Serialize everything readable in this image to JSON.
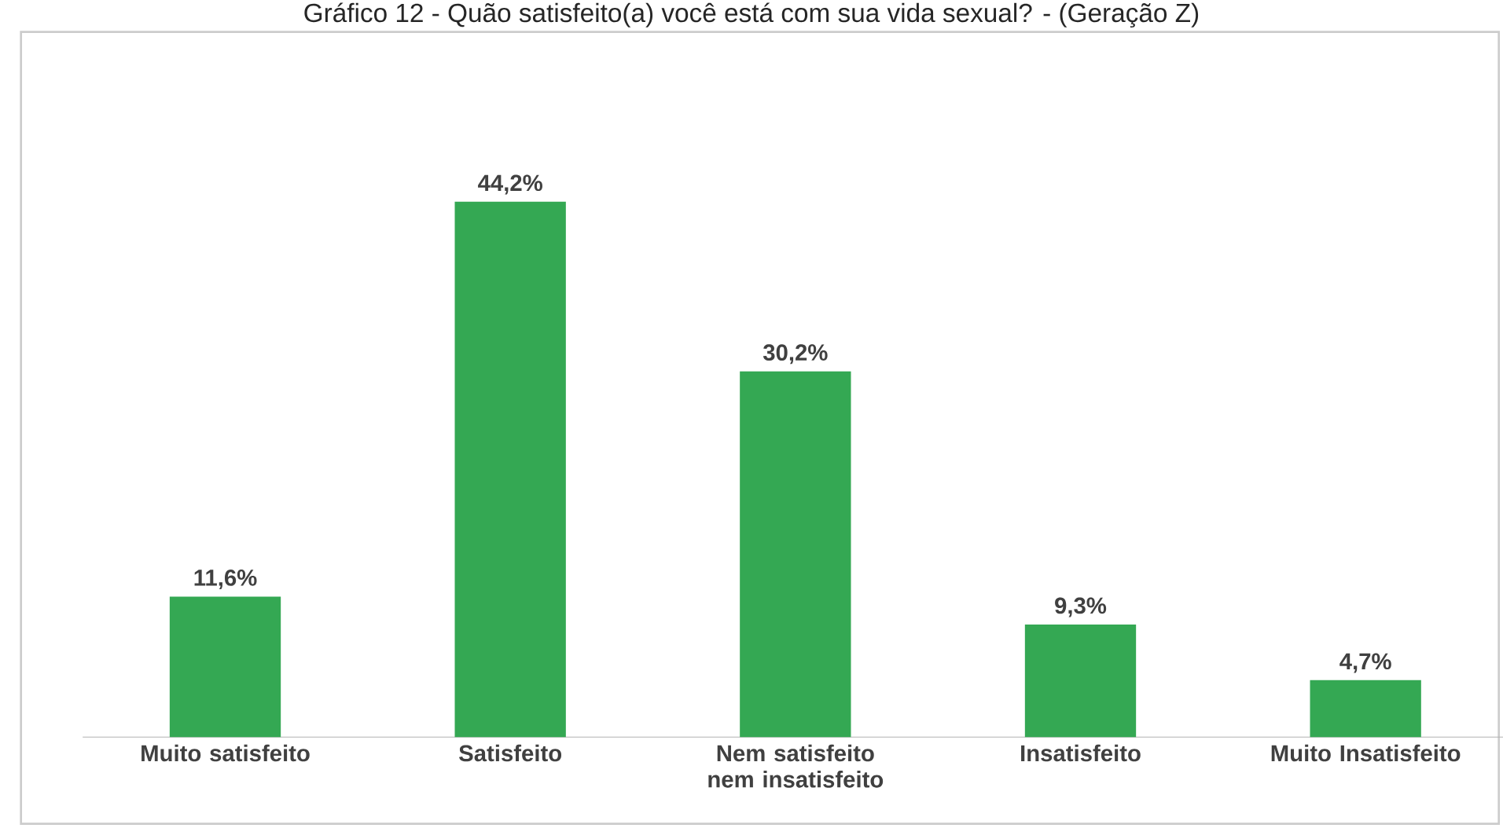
{
  "chart_data": {
    "type": "bar",
    "title": "Gráfico 12 - Quão satisfeito(a) você está com sua vida sexual? - (Geração Z)",
    "categories": [
      "Muito satisfeito",
      "Satisfeito",
      "Nem satisfeito nem insatisfeito",
      "Insatisfeito",
      "Muito Insatisfeito"
    ],
    "values": [
      11.6,
      44.2,
      30.2,
      9.3,
      4.7
    ],
    "value_labels": [
      "11,6%",
      "44,2%",
      "30,2%",
      "9,3%",
      "4,7%"
    ],
    "color": "#34a853"
  }
}
